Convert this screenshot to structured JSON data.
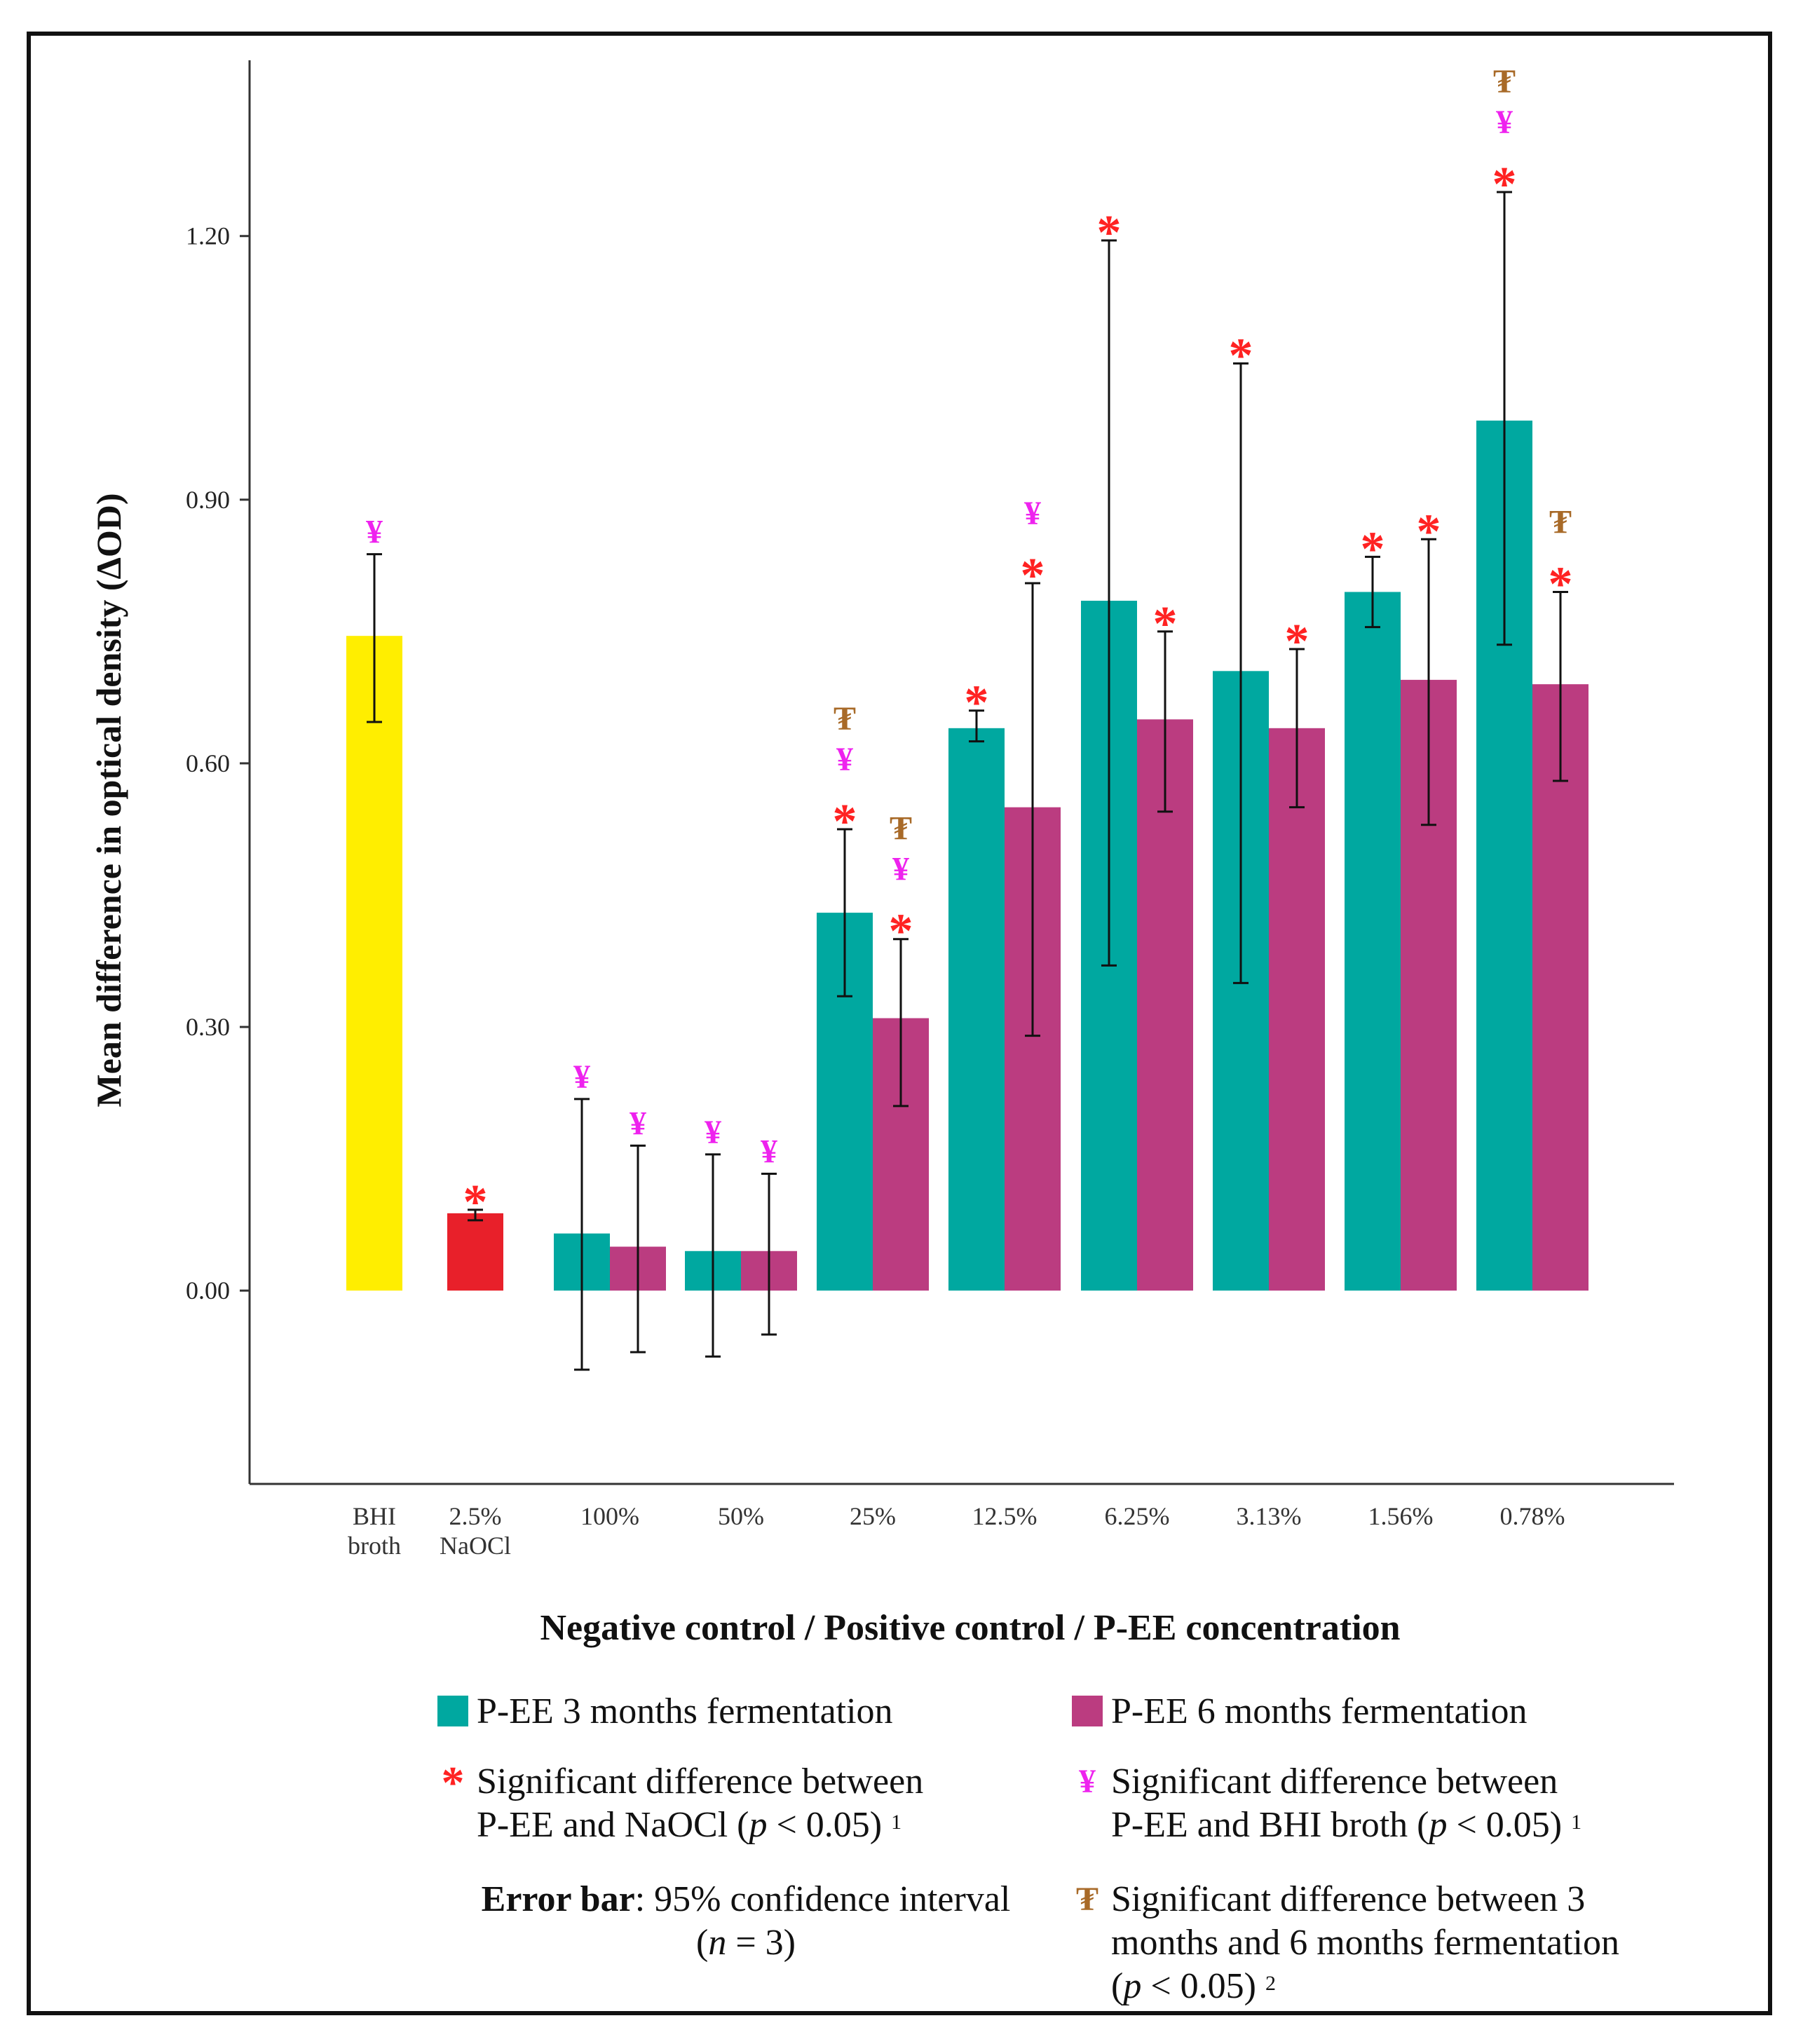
{
  "chart_data": {
    "type": "bar",
    "y_axis": {
      "label": "Mean difference in optical density (ΔOD)",
      "range": [
        -0.22,
        1.4
      ],
      "ticks": [
        0.0,
        0.3,
        0.6,
        0.9,
        1.2
      ],
      "tick_labels": [
        "0.00",
        "0.30",
        "0.60",
        "0.90",
        "1.20"
      ]
    },
    "x_axis": {
      "label": "Negative control / Positive control / P-EE concentration"
    },
    "groups": [
      {
        "label_lines": [
          "BHI",
          "broth"
        ],
        "bars": [
          {
            "series": "BHI broth",
            "value": 0.745,
            "ci": [
              0.647,
              0.838
            ],
            "color": "#ffee00",
            "marks": [
              "yen"
            ]
          }
        ]
      },
      {
        "label_lines": [
          "2.5%",
          "NaOCl"
        ],
        "bars": [
          {
            "series": "2.5% NaOCl",
            "value": 0.088,
            "ci": [
              0.08,
              0.092
            ],
            "color": "#e8202a",
            "marks": [
              "star"
            ]
          }
        ]
      },
      {
        "label_lines": [
          "100%"
        ],
        "bars": [
          {
            "series": "P-EE 3 months fermentation",
            "value": 0.065,
            "ci": [
              -0.09,
              0.218
            ],
            "marks": [
              "yen"
            ]
          },
          {
            "series": "P-EE 6 months fermentation",
            "value": 0.05,
            "ci": [
              -0.07,
              0.165
            ],
            "marks": [
              "yen"
            ]
          }
        ]
      },
      {
        "label_lines": [
          "50%"
        ],
        "bars": [
          {
            "series": "P-EE 3 months fermentation",
            "value": 0.045,
            "ci": [
              -0.075,
              0.155
            ],
            "marks": [
              "yen"
            ]
          },
          {
            "series": "P-EE 6 months fermentation",
            "value": 0.045,
            "ci": [
              -0.05,
              0.133
            ],
            "marks": [
              "yen"
            ]
          }
        ]
      },
      {
        "label_lines": [
          "25%"
        ],
        "bars": [
          {
            "series": "P-EE 3 months fermentation",
            "value": 0.43,
            "ci": [
              0.335,
              0.525
            ],
            "marks": [
              "star",
              "yen",
              "tugrik"
            ]
          },
          {
            "series": "P-EE 6 months fermentation",
            "value": 0.31,
            "ci": [
              0.21,
              0.4
            ],
            "marks": [
              "star",
              "yen",
              "tugrik"
            ]
          }
        ]
      },
      {
        "label_lines": [
          "12.5%"
        ],
        "bars": [
          {
            "series": "P-EE 3 months fermentation",
            "value": 0.64,
            "ci": [
              0.625,
              0.66
            ],
            "marks": [
              "star"
            ]
          },
          {
            "series": "P-EE 6 months fermentation",
            "value": 0.55,
            "ci": [
              0.29,
              0.805
            ],
            "marks": [
              "star",
              "yen"
            ]
          }
        ]
      },
      {
        "label_lines": [
          "6.25%"
        ],
        "bars": [
          {
            "series": "P-EE 3 months fermentation",
            "value": 0.785,
            "ci": [
              0.37,
              1.195
            ],
            "marks": [
              "star"
            ]
          },
          {
            "series": "P-EE 6 months fermentation",
            "value": 0.65,
            "ci": [
              0.545,
              0.75
            ],
            "marks": [
              "star"
            ]
          }
        ]
      },
      {
        "label_lines": [
          "3.13%"
        ],
        "bars": [
          {
            "series": "P-EE 3 months fermentation",
            "value": 0.705,
            "ci": [
              0.35,
              1.055
            ],
            "marks": [
              "star"
            ]
          },
          {
            "series": "P-EE 6 months fermentation",
            "value": 0.64,
            "ci": [
              0.55,
              0.73
            ],
            "marks": [
              "star"
            ]
          }
        ]
      },
      {
        "label_lines": [
          "1.56%"
        ],
        "bars": [
          {
            "series": "P-EE 3 months fermentation",
            "value": 0.795,
            "ci": [
              0.755,
              0.835
            ],
            "marks": [
              "star"
            ]
          },
          {
            "series": "P-EE 6 months fermentation",
            "value": 0.695,
            "ci": [
              0.53,
              0.855
            ],
            "marks": [
              "star"
            ]
          }
        ]
      },
      {
        "label_lines": [
          "0.78%"
        ],
        "bars": [
          {
            "series": "P-EE 3 months fermentation",
            "value": 0.99,
            "ci": [
              0.735,
              1.25
            ],
            "marks": [
              "star",
              "yen",
              "tugrik"
            ]
          },
          {
            "series": "P-EE 6 months fermentation",
            "value": 0.69,
            "ci": [
              0.58,
              0.795
            ],
            "marks": [
              "star",
              "tugrik"
            ]
          }
        ]
      }
    ],
    "series_colors": {
      "P-EE 3 months fermentation": "#00a8a0",
      "P-EE 6 months fermentation": "#bb3c80"
    },
    "mark_symbols": {
      "star": "*",
      "yen": "¥",
      "tugrik": "₮"
    },
    "mark_colors": {
      "star": "#ff2222",
      "yen": "#ee22ee",
      "tugrik": "#a86a28"
    },
    "error_bar_color": "#111111",
    "axis_color": "#333333"
  },
  "legend": {
    "series3": {
      "label": "P-EE 3 months fermentation",
      "color": "#00a8a0"
    },
    "series6": {
      "label": "P-EE 6 months fermentation",
      "color": "#bb3c80"
    },
    "star": {
      "symbol": "*",
      "line1": "Significant difference between",
      "line2_pre": "P-EE and NaOCl (",
      "p_italic": "p",
      "line2_post": " < 0.05) ",
      "footnote": "1"
    },
    "yen": {
      "symbol": "¥",
      "line1": "Significant difference between",
      "line2_pre": "P-EE and BHI broth (",
      "p_italic": "p",
      "line2_post": " < 0.05) ",
      "footnote": "1"
    },
    "error_bar": {
      "bold": "Error bar",
      "rest": ": 95% confidence interval",
      "line2_pre": "(",
      "n_italic": "n",
      "line2_post": " = 3)"
    },
    "tugrik": {
      "symbol": "₮",
      "line1": "Significant difference between 3",
      "line2": "months and 6 months fermentation",
      "line3_pre": "(",
      "p_italic": "p",
      "line3_post": " < 0.05) ",
      "footnote": "2"
    }
  }
}
